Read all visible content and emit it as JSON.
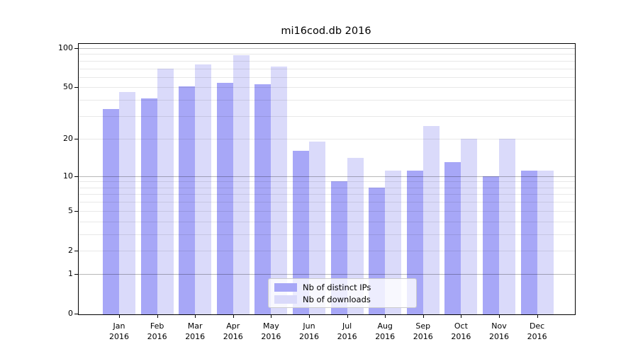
{
  "chart_data": {
    "type": "bar",
    "title": "mi16cod.db 2016",
    "x_tick_labels": [
      [
        "Jan",
        "2016"
      ],
      [
        "Feb",
        "2016"
      ],
      [
        "Mar",
        "2016"
      ],
      [
        "Apr",
        "2016"
      ],
      [
        "May",
        "2016"
      ],
      [
        "Jun",
        "2016"
      ],
      [
        "Jul",
        "2016"
      ],
      [
        "Aug",
        "2016"
      ],
      [
        "Sep",
        "2016"
      ],
      [
        "Oct",
        "2016"
      ],
      [
        "Nov",
        "2016"
      ],
      [
        "Dec",
        "2016"
      ]
    ],
    "series": [
      {
        "name": "Nb of distinct IPs",
        "color": "#a7a7f7",
        "values": [
          34,
          41,
          51,
          54,
          53,
          16,
          9,
          8,
          11,
          13,
          10,
          11
        ]
      },
      {
        "name": "Nb of downloads",
        "color": "#dadafa",
        "values": [
          46,
          70,
          75,
          88,
          72,
          19,
          14,
          11,
          25,
          20,
          20,
          11
        ]
      }
    ],
    "yscale": "log1p",
    "yticks": [
      0,
      1,
      2,
      5,
      10,
      20,
      50,
      100
    ],
    "ytick_major_grid": [
      1,
      10,
      100
    ],
    "ytick_minor_grid": [
      2,
      3,
      4,
      5,
      6,
      7,
      8,
      9,
      20,
      30,
      40,
      50,
      60,
      70,
      80,
      90
    ],
    "ylim": [
      0,
      108
    ],
    "grid": true,
    "legend_position": "lower center inside",
    "colors": {
      "grid_major": "rgba(0,0,0,0.28)",
      "grid_minor": "rgba(0,0,0,0.09)",
      "axis": "#000000",
      "text": "#000000",
      "legend_border": "#cccccc"
    }
  }
}
